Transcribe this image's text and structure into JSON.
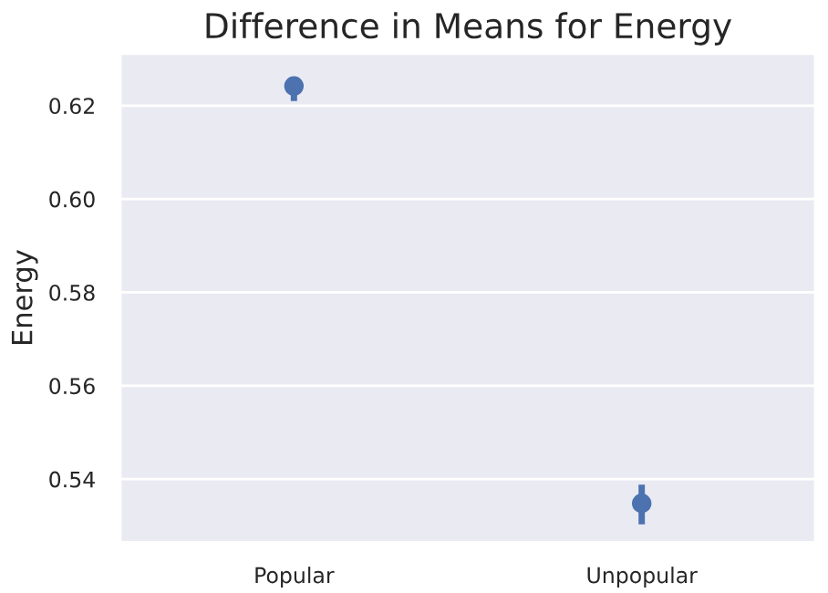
{
  "chart_data": {
    "type": "scatter",
    "title": "Difference in Means for Energy",
    "ylabel": "Energy",
    "categories": [
      "Popular",
      "Unpopular"
    ],
    "series": [
      {
        "color": "#4c72b0",
        "values": [
          0.6242,
          0.5348
        ],
        "errors": [
          [
            0.621,
            0.6261
          ],
          [
            0.5303,
            0.5388
          ]
        ]
      }
    ],
    "ylim": [
      0.5264,
      0.6312
    ],
    "yticks": [
      0.54,
      0.56,
      0.58,
      {
        "value": 0.6,
        "label": "0.60"
      },
      0.62
    ],
    "grid": "y",
    "marker": "circle"
  }
}
